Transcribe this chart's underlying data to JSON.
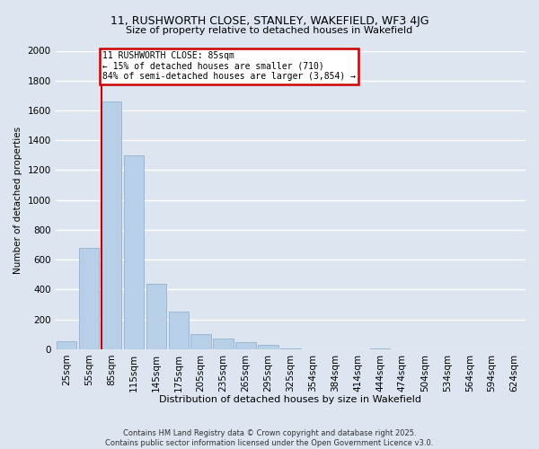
{
  "title1": "11, RUSHWORTH CLOSE, STANLEY, WAKEFIELD, WF3 4JG",
  "title2": "Size of property relative to detached houses in Wakefield",
  "xlabel": "Distribution of detached houses by size in Wakefield",
  "ylabel": "Number of detached properties",
  "categories": [
    "25sqm",
    "55sqm",
    "85sqm",
    "115sqm",
    "145sqm",
    "175sqm",
    "205sqm",
    "235sqm",
    "265sqm",
    "295sqm",
    "325sqm",
    "354sqm",
    "384sqm",
    "414sqm",
    "444sqm",
    "474sqm",
    "504sqm",
    "534sqm",
    "564sqm",
    "594sqm",
    "624sqm"
  ],
  "values": [
    55,
    680,
    1660,
    1300,
    440,
    250,
    100,
    70,
    50,
    30,
    5,
    2,
    0,
    0,
    5,
    0,
    0,
    0,
    0,
    0,
    0
  ],
  "bar_color": "#b8cfe8",
  "highlight_bar_index": 2,
  "highlight_line_color": "#cc0000",
  "highlight_box_color": "#cc0000",
  "background_color": "#dde5f0",
  "plot_bg_color": "#dde5f0",
  "grid_color": "#ffffff",
  "annotation_line1": "11 RUSHWORTH CLOSE: 85sqm",
  "annotation_line2": "← 15% of detached houses are smaller (710)",
  "annotation_line3": "84% of semi-detached houses are larger (3,854) →",
  "ylim": [
    0,
    2000
  ],
  "yticks": [
    0,
    200,
    400,
    600,
    800,
    1000,
    1200,
    1400,
    1600,
    1800,
    2000
  ],
  "footnote1": "Contains HM Land Registry data © Crown copyright and database right 2025.",
  "footnote2": "Contains public sector information licensed under the Open Government Licence v3.0."
}
